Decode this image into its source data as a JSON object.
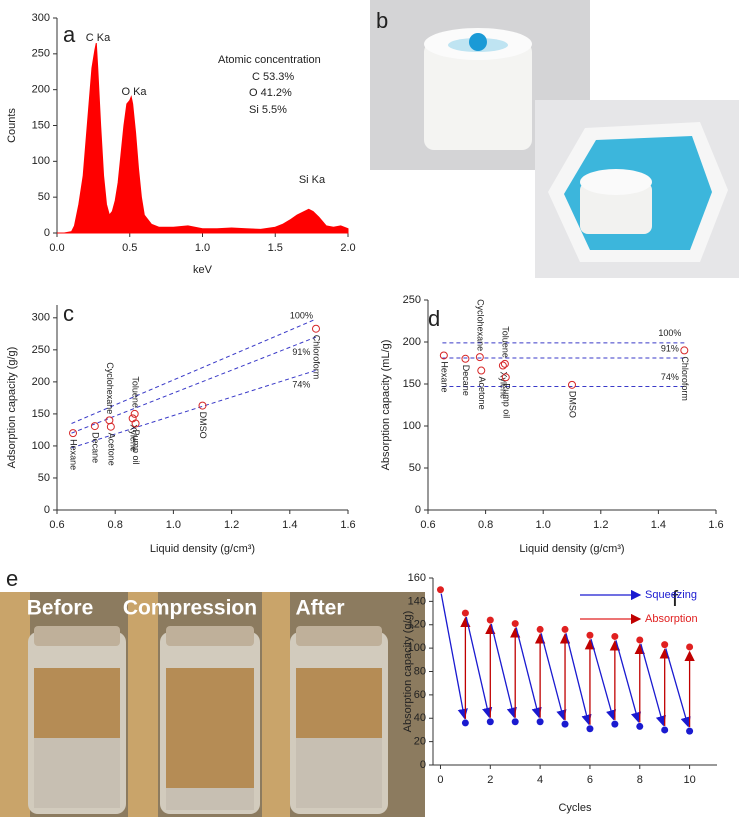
{
  "chart_data": [
    {
      "type": "area",
      "panel_label": "a",
      "xlabel": "keV",
      "ylabel": "Counts",
      "color": "#ff0000",
      "x": [
        0,
        0.05,
        0.1,
        0.12,
        0.15,
        0.18,
        0.2,
        0.22,
        0.24,
        0.26,
        0.27,
        0.28,
        0.3,
        0.32,
        0.34,
        0.36,
        0.38,
        0.4,
        0.42,
        0.44,
        0.46,
        0.48,
        0.5,
        0.51,
        0.52,
        0.54,
        0.56,
        0.58,
        0.6,
        0.65,
        0.7,
        0.8,
        0.9,
        1.0,
        1.1,
        1.2,
        1.3,
        1.4,
        1.5,
        1.55,
        1.6,
        1.65,
        1.7,
        1.73,
        1.76,
        1.8,
        1.85,
        1.9,
        1.95,
        2.0
      ],
      "values": [
        0,
        0,
        2,
        10,
        40,
        80,
        130,
        180,
        230,
        255,
        265,
        230,
        150,
        80,
        40,
        25,
        30,
        45,
        70,
        110,
        150,
        180,
        185,
        190,
        180,
        140,
        90,
        50,
        25,
        12,
        8,
        8,
        10,
        6,
        6,
        7,
        6,
        5,
        8,
        12,
        18,
        25,
        30,
        33,
        30,
        22,
        10,
        8,
        10,
        6
      ],
      "annotations": [
        "C Ka",
        "O Ka",
        "Si Ka",
        "Atomic concentration",
        "C 53.3%",
        "O 41.2%",
        "Si 5.5%"
      ],
      "xlim": [
        0,
        2
      ],
      "ylim": [
        0,
        300
      ],
      "xticks": [
        {
          "value": 0,
          "label": "0.0"
        },
        0.5,
        {
          "value": 1,
          "label": "1.0"
        },
        1.5,
        {
          "value": 2,
          "label": "2.0"
        }
      ],
      "yticks": [
        0,
        50,
        100,
        150,
        200,
        250,
        300
      ]
    },
    {
      "type": "scatter",
      "panel_label": "c",
      "xlabel": "Liquid density (g/cm³)",
      "ylabel": "Adsorption capacity (g/g)",
      "points": {
        "color": "#d62728",
        "labels": [
          "Hexane",
          "Decane",
          "Cyclohexane",
          "Acetone",
          "Toluene",
          "Xylene",
          "Pump oil",
          "DMSO",
          "Chloroform"
        ],
        "x": [
          0.655,
          0.73,
          0.78,
          0.785,
          0.867,
          0.86,
          0.87,
          1.1,
          1.49
        ],
        "values": [
          120,
          131,
          140,
          130,
          150,
          143,
          135,
          163,
          283
        ]
      },
      "reference_lines": [
        {
          "label": "100%",
          "color": "#3a3ac8",
          "x": [
            0.65,
            1.49
          ],
          "values": [
            135,
            298
          ]
        },
        {
          "label": "91%",
          "color": "#3a3ac8",
          "x": [
            0.65,
            1.49
          ],
          "values": [
            120,
            270
          ]
        },
        {
          "label": "74%",
          "color": "#3a3ac8",
          "x": [
            0.65,
            1.49
          ],
          "values": [
            97,
            218
          ]
        }
      ],
      "xlim": [
        0.6,
        1.6
      ],
      "ylim": [
        0,
        320
      ],
      "xticks": [
        0.6,
        0.8,
        {
          "value": 1,
          "label": "1.0"
        },
        1.2,
        1.4,
        1.6
      ],
      "yticks": [
        0,
        50,
        100,
        150,
        200,
        250,
        300
      ]
    },
    {
      "type": "scatter",
      "panel_label": "d",
      "xlabel": "Liquid density (g/cm³)",
      "ylabel": "Absorption capacity (mL/g)",
      "points": {
        "color": "#d62728",
        "labels": [
          "Hexane",
          "Decane",
          "Cyclohexane",
          "Acetone",
          "Toluene",
          "Xylene",
          "Pump oil",
          "DMSO",
          "Chloroform"
        ],
        "x": [
          0.655,
          0.73,
          0.78,
          0.785,
          0.867,
          0.86,
          0.87,
          1.1,
          1.49
        ],
        "values": [
          184,
          180,
          182,
          166,
          174,
          172,
          158,
          149,
          190
        ]
      },
      "reference_lines": [
        {
          "label": "100%",
          "color": "#3a3ac8",
          "x": [
            0.65,
            1.49
          ],
          "values": [
            199,
            199
          ]
        },
        {
          "label": "91%",
          "color": "#3a3ac8",
          "x": [
            0.65,
            1.49
          ],
          "values": [
            181,
            181
          ]
        },
        {
          "label": "74%",
          "color": "#3a3ac8",
          "x": [
            0.65,
            1.49
          ],
          "values": [
            147,
            147
          ]
        }
      ],
      "xlim": [
        0.6,
        1.6
      ],
      "ylim": [
        0,
        250
      ],
      "xticks": [
        0.6,
        0.8,
        {
          "value": 1,
          "label": "1.0"
        },
        1.2,
        1.4,
        1.6
      ],
      "yticks": [
        0,
        50,
        100,
        150,
        200,
        250
      ]
    },
    {
      "type": "scatter",
      "panel_label": "f",
      "xlabel": "Cycles",
      "ylabel": "Absorption capacity (g/g)",
      "series": [
        {
          "name": "Squeezing",
          "color": "#1a1ad0",
          "x": [
            1,
            2,
            3,
            4,
            5,
            6,
            7,
            8,
            9,
            10
          ],
          "values": [
            36,
            37,
            37,
            37,
            35,
            31,
            35,
            33,
            30,
            29
          ]
        },
        {
          "name": "Absorption",
          "color": "#e02020",
          "x": [
            0,
            1,
            2,
            3,
            4,
            5,
            6,
            7,
            8,
            9,
            10
          ],
          "values": [
            150,
            130,
            124,
            121,
            116,
            116,
            111,
            110,
            107,
            103,
            101
          ]
        }
      ],
      "xlim": [
        -0.3,
        11.1
      ],
      "ylim": [
        0,
        160
      ],
      "xticks": [
        0,
        2,
        4,
        6,
        8,
        10
      ],
      "yticks": [
        0,
        20,
        40,
        60,
        80,
        100,
        120,
        140,
        160
      ]
    }
  ],
  "photos": {
    "b": {
      "panel_label": "b"
    },
    "e": {
      "panel_label": "e",
      "captions": [
        "Before",
        "Compression",
        "After"
      ]
    }
  }
}
